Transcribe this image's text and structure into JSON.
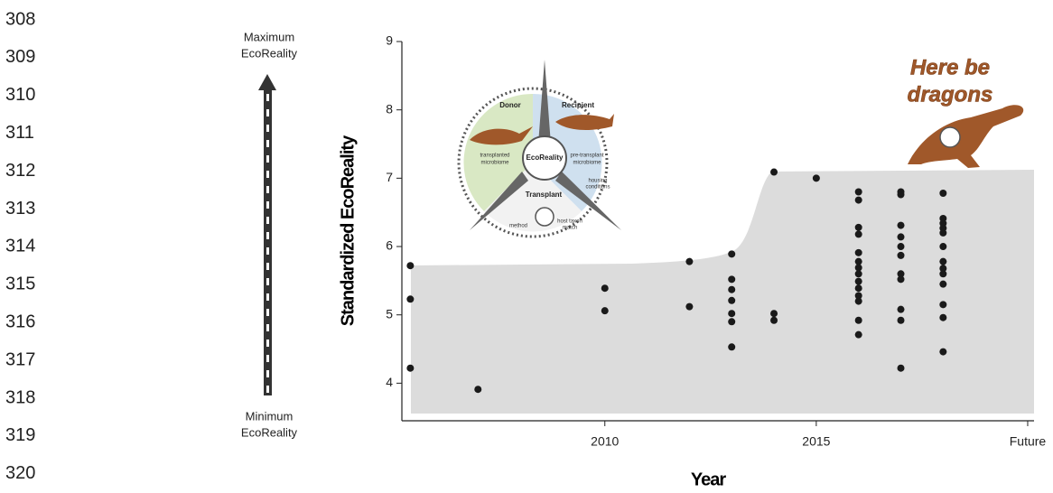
{
  "line_numbers": [
    "308",
    "309",
    "310",
    "311",
    "312",
    "313",
    "314",
    "315",
    "316",
    "317",
    "318",
    "319",
    "320"
  ],
  "chart_data": {
    "type": "scatter",
    "x_label": "Year",
    "y_label": "Standardized EcoReality",
    "scale_top_label": [
      "Maximum",
      "EcoReality"
    ],
    "scale_bottom_label": [
      "Minimum",
      "EcoReality"
    ],
    "annotation": [
      "Here be",
      "dragons"
    ],
    "inset": {
      "center": "EcoReality",
      "donor": "Donor",
      "recipient": "Recipient",
      "transplant": "Transplant",
      "donor_item": [
        "transplanted",
        "microbiome"
      ],
      "recipient_item": [
        "pre-transplant",
        "microbiome"
      ],
      "housing": [
        "housing",
        "conditions"
      ],
      "method": "method",
      "host_match": [
        "host taxon",
        "match"
      ]
    },
    "color": "#1a1a1a",
    "xlim": [
      2005.2,
      2020.15
    ],
    "ylim": [
      3.45,
      9
    ],
    "xticks": [
      2010,
      2015,
      {
        "value": 2020,
        "label": "Future"
      }
    ],
    "yticks": [
      4,
      5,
      6,
      7,
      8,
      9
    ],
    "x": [
      2005.4,
      2005.4,
      2005.4,
      2007,
      2010,
      2010,
      2012,
      2012,
      2013,
      2013,
      2013,
      2013,
      2013,
      2013,
      2013,
      2014,
      2014,
      2014,
      2015,
      2016,
      2016,
      2016,
      2016,
      2016,
      2016,
      2016,
      2016,
      2016,
      2016,
      2016,
      2016,
      2016,
      2016,
      2017,
      2017,
      2017,
      2017,
      2017,
      2017,
      2017,
      2017,
      2017,
      2017,
      2017,
      2018,
      2018,
      2018,
      2018,
      2018,
      2018,
      2018,
      2018,
      2018,
      2018,
      2018,
      2018,
      2018
    ],
    "values": [
      5.72,
      5.23,
      4.22,
      3.91,
      5.39,
      5.06,
      5.78,
      5.12,
      5.89,
      5.52,
      5.37,
      5.21,
      5.02,
      4.9,
      4.53,
      7.09,
      5.02,
      4.92,
      7.0,
      6.8,
      6.68,
      6.28,
      6.18,
      5.91,
      5.78,
      5.69,
      5.6,
      5.49,
      5.39,
      5.28,
      5.2,
      4.92,
      4.71,
      6.8,
      6.76,
      6.31,
      6.14,
      6.0,
      5.87,
      5.6,
      5.52,
      5.08,
      4.92,
      4.22,
      6.78,
      6.41,
      6.34,
      6.27,
      6.2,
      6.0,
      5.78,
      5.68,
      5.6,
      5.45,
      5.15,
      4.96,
      4.46
    ]
  }
}
